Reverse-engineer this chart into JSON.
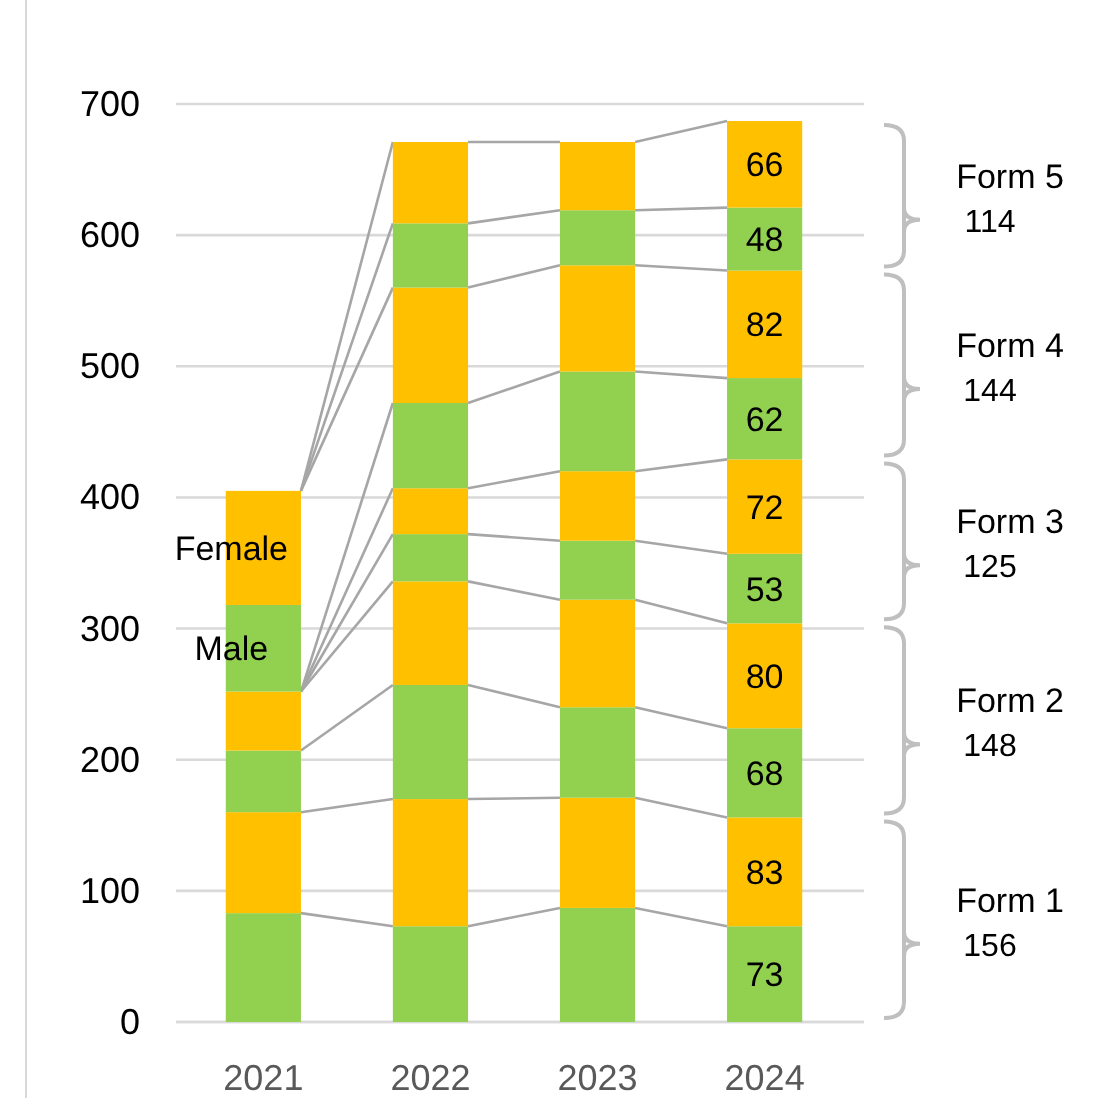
{
  "chart_data": {
    "type": "bar",
    "stacked": true,
    "categories": [
      "2021",
      "2022",
      "2023",
      "2024"
    ],
    "ylim": [
      0,
      700
    ],
    "yticks": [
      0,
      100,
      200,
      300,
      400,
      500,
      600,
      700
    ],
    "grid": "y",
    "series": [
      {
        "color": "#92d050",
        "values": [
          83,
          73,
          87,
          73
        ],
        "value_labels": [
          null,
          null,
          null,
          "73"
        ]
      },
      {
        "color": "#ffc000",
        "values": [
          77,
          97,
          84,
          83
        ],
        "value_labels": [
          null,
          null,
          null,
          "83"
        ]
      },
      {
        "color": "#92d050",
        "values": [
          47,
          87,
          69,
          68
        ],
        "value_labels": [
          null,
          null,
          null,
          "68"
        ]
      },
      {
        "color": "#ffc000",
        "values": [
          45,
          79,
          82,
          80
        ],
        "value_labels": [
          null,
          null,
          null,
          "80"
        ]
      },
      {
        "color": "#92d050",
        "values": [
          0,
          36,
          45,
          53
        ],
        "value_labels": [
          null,
          null,
          null,
          "53"
        ]
      },
      {
        "color": "#ffc000",
        "values": [
          0,
          35,
          53,
          72
        ],
        "value_labels": [
          null,
          null,
          null,
          "72"
        ]
      },
      {
        "color": "#92d050",
        "values": [
          0,
          65,
          76,
          62
        ],
        "value_labels": [
          null,
          null,
          null,
          "62"
        ]
      },
      {
        "name": "Male",
        "color": "#92d050",
        "values": [
          66,
          null,
          null,
          null
        ]
      },
      {
        "name": "Female",
        "color": "#ffc000",
        "values": [
          87,
          null,
          null,
          null
        ]
      },
      {
        "color": "#ffc000",
        "values": [
          0,
          88,
          81,
          82
        ],
        "value_labels": [
          null,
          null,
          null,
          "82"
        ]
      },
      {
        "color": "#92d050",
        "values": [
          0,
          49,
          42,
          48
        ],
        "value_labels": [
          null,
          null,
          null,
          "48"
        ]
      },
      {
        "color": "#ffc000",
        "values": [
          0,
          62,
          52,
          66
        ],
        "value_labels": [
          null,
          null,
          null,
          "66"
        ]
      }
    ],
    "annotations": [
      "Form 1",
      "156",
      "Form 2",
      "148",
      "Form 3",
      "125",
      "Form 4",
      "144",
      "Form 5",
      "114"
    ]
  }
}
